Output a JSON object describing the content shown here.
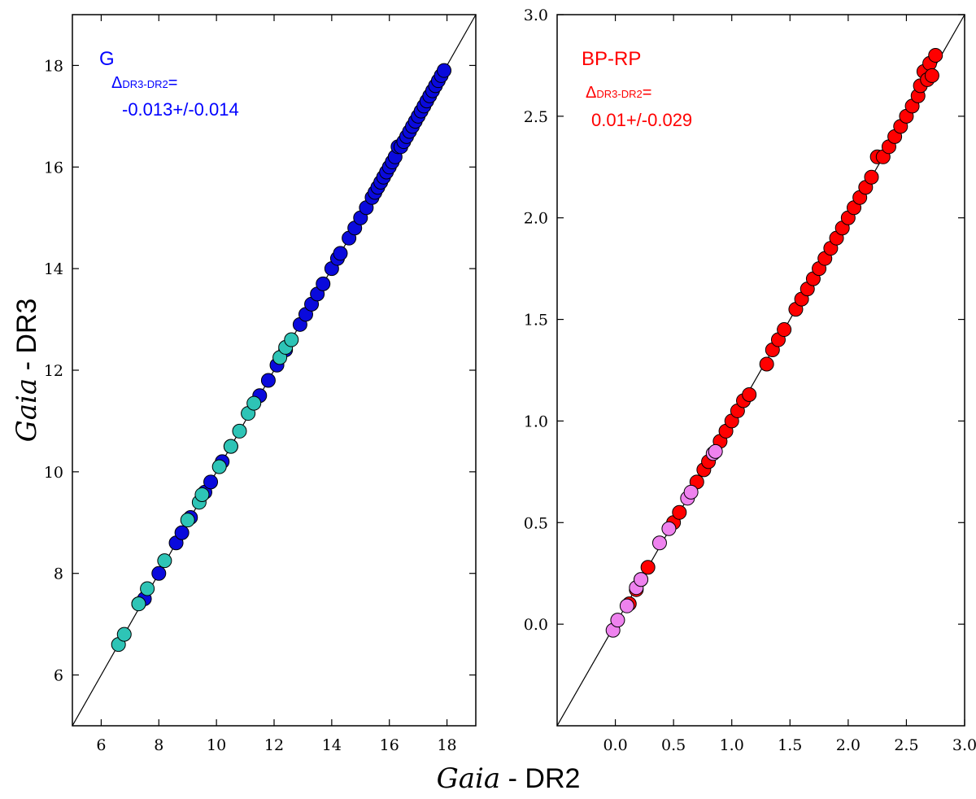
{
  "figure": {
    "ylabel": {
      "italic": "Gaia",
      "rest": " - DR3"
    },
    "xlabel": {
      "italic": "Gaia",
      "rest": " - DR2"
    }
  },
  "chart_data": [
    {
      "type": "scatter",
      "panel": "left",
      "xlim": [
        5,
        19
      ],
      "ylim": [
        5,
        19
      ],
      "xticks": [
        6,
        8,
        10,
        12,
        14,
        16,
        18
      ],
      "yticks": [
        6,
        8,
        10,
        12,
        14,
        16,
        18
      ],
      "reference_line": "y = x",
      "annotation": {
        "title": "G",
        "delta_symbol": "Δ",
        "delta_sub": "DR3-DR2",
        "delta_eq": "=",
        "value": "-0.013+/-0.014",
        "color": "#0000ff"
      },
      "series": [
        {
          "name": "blue stars",
          "color": "#0a0adc",
          "x": [
            7.3,
            7.5,
            8.0,
            8.6,
            8.8,
            9.1,
            9.6,
            9.8,
            10.2,
            10.5,
            11.5,
            11.8,
            12.1,
            12.4,
            12.9,
            13.1,
            13.3,
            13.5,
            13.7,
            14.0,
            14.2,
            14.3,
            14.6,
            14.8,
            15.0,
            15.2,
            15.4,
            15.5,
            15.6,
            15.7,
            15.8,
            15.9,
            16.0,
            16.1,
            16.2,
            16.3,
            16.4,
            16.5,
            16.6,
            16.7,
            16.8,
            16.9,
            17.0,
            17.1,
            17.2,
            17.3,
            17.4,
            17.5,
            17.6,
            17.7,
            17.8,
            17.9
          ],
          "y": [
            7.4,
            7.5,
            8.0,
            8.6,
            8.8,
            9.1,
            9.6,
            9.8,
            10.2,
            10.5,
            11.5,
            11.8,
            12.1,
            12.4,
            12.9,
            13.1,
            13.3,
            13.5,
            13.7,
            14.0,
            14.2,
            14.3,
            14.6,
            14.8,
            15.0,
            15.2,
            15.4,
            15.5,
            15.6,
            15.7,
            15.8,
            15.9,
            16.0,
            16.1,
            16.2,
            16.4,
            16.4,
            16.5,
            16.6,
            16.7,
            16.8,
            16.9,
            17.0,
            17.1,
            17.2,
            17.3,
            17.4,
            17.5,
            17.6,
            17.7,
            17.8,
            17.9
          ]
        },
        {
          "name": "cyan stars",
          "color": "#2ec4b6",
          "x": [
            6.6,
            6.8,
            7.3,
            7.6,
            8.2,
            9.0,
            9.4,
            9.5,
            10.1,
            10.5,
            10.8,
            11.1,
            11.3,
            12.2,
            12.4,
            12.6
          ],
          "y": [
            6.6,
            6.8,
            7.4,
            7.7,
            8.25,
            9.05,
            9.4,
            9.55,
            10.1,
            10.5,
            10.8,
            11.15,
            11.35,
            12.25,
            12.45,
            12.6
          ]
        }
      ]
    },
    {
      "type": "scatter",
      "panel": "right",
      "xlim": [
        -0.5,
        3.0
      ],
      "ylim": [
        -0.5,
        3.0
      ],
      "xticks": [
        0.0,
        0.5,
        1.0,
        1.5,
        2.0,
        2.5,
        3.0
      ],
      "yticks": [
        0.0,
        0.5,
        1.0,
        1.5,
        2.0,
        2.5,
        3.0
      ],
      "xtick_labels": [
        "0.0",
        "0.5",
        "1.0",
        "1.5",
        "2.0",
        "2.5",
        "3.0"
      ],
      "ytick_labels": [
        "0.0",
        "0.5",
        "1.0",
        "1.5",
        "2.0",
        "2.5",
        "3.0"
      ],
      "reference_line": "y = x",
      "annotation": {
        "title": "BP-RP",
        "delta_symbol": "Δ",
        "delta_sub": "DR3-DR2",
        "delta_eq": "=",
        "value": "0.01+/-0.029",
        "color": "#ff0000"
      },
      "series": [
        {
          "name": "red stars",
          "color": "#ff0000",
          "x": [
            0.12,
            0.18,
            0.22,
            0.28,
            0.5,
            0.55,
            0.7,
            0.76,
            0.8,
            0.9,
            0.95,
            1.0,
            1.05,
            1.1,
            1.15,
            1.3,
            1.35,
            1.4,
            1.45,
            1.55,
            1.6,
            1.65,
            1.7,
            1.75,
            1.8,
            1.85,
            1.9,
            1.95,
            2.0,
            2.05,
            2.1,
            2.15,
            2.2,
            2.25,
            2.3,
            2.35,
            2.4,
            2.45,
            2.5,
            2.55,
            2.6,
            2.62,
            2.65,
            2.68,
            2.7,
            2.72,
            2.75
          ],
          "y": [
            0.1,
            0.17,
            0.22,
            0.28,
            0.5,
            0.55,
            0.7,
            0.76,
            0.8,
            0.9,
            0.95,
            1.0,
            1.05,
            1.1,
            1.13,
            1.28,
            1.35,
            1.4,
            1.45,
            1.55,
            1.6,
            1.65,
            1.7,
            1.75,
            1.8,
            1.85,
            1.9,
            1.95,
            2.0,
            2.05,
            2.1,
            2.15,
            2.2,
            2.3,
            2.3,
            2.35,
            2.4,
            2.45,
            2.5,
            2.55,
            2.6,
            2.65,
            2.72,
            2.68,
            2.76,
            2.7,
            2.8
          ]
        },
        {
          "name": "violet stars",
          "color": "#ee82ee",
          "x": [
            -0.02,
            0.02,
            0.1,
            0.18,
            0.22,
            0.38,
            0.46,
            0.62,
            0.65,
            0.84,
            0.86
          ],
          "y": [
            -0.03,
            0.02,
            0.09,
            0.18,
            0.22,
            0.4,
            0.47,
            0.62,
            0.65,
            0.84,
            0.85
          ]
        }
      ]
    }
  ]
}
